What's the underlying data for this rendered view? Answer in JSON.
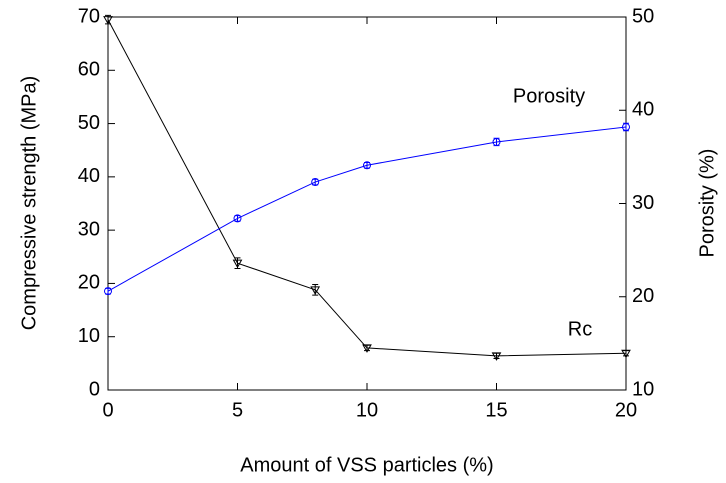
{
  "chart_data": {
    "type": "line",
    "x_label": "Amount of VSS particles (%)",
    "y_label": "Compressive strength (MPa)",
    "y2_label": "Porosity (%)",
    "annotations": [
      "Porosity",
      "Rc"
    ],
    "x": [
      0,
      5,
      8,
      10,
      15,
      20
    ],
    "series": [
      {
        "name": "Rc",
        "color": "#000000",
        "marker": "triangle-down",
        "values": [
          69.5,
          23.8,
          18.8,
          7.9,
          6.4,
          6.9
        ],
        "errors": [
          0.8,
          1.0,
          1.0,
          0.5,
          0.5,
          0.5
        ]
      },
      {
        "name": "Porosity",
        "color": "#0000ff",
        "marker": "circle",
        "axis": "y2",
        "values": [
          20.6,
          28.4,
          32.3,
          34.1,
          36.6,
          38.2
        ],
        "errors": [
          0.3,
          0.3,
          0.3,
          0.3,
          0.4,
          0.4
        ]
      }
    ],
    "xlim": [
      0,
      20
    ],
    "xticks": [
      0,
      5,
      10,
      15,
      20
    ],
    "ylim": [
      0,
      70
    ],
    "yticks": [
      0,
      10,
      20,
      30,
      40,
      50,
      60,
      70
    ],
    "y2lim": [
      10,
      50
    ],
    "y2ticks": [
      10,
      20,
      30,
      40,
      50
    ]
  }
}
